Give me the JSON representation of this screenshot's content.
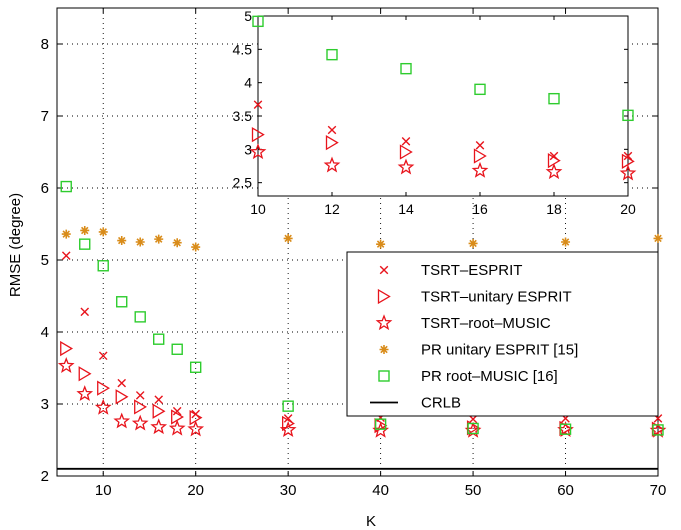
{
  "chart_data": {
    "type": "scatter",
    "xlabel": "K",
    "ylabel": "RMSE (degree)",
    "xlim": [
      5,
      70
    ],
    "ylim": [
      2,
      8.5
    ],
    "xticks": [
      10,
      20,
      30,
      40,
      50,
      60,
      70
    ],
    "yticks": [
      2,
      3,
      4,
      5,
      6,
      7,
      8
    ],
    "grid": "dotted",
    "legend_position": "right",
    "series": [
      {
        "name": "TSRT–ESPRIT",
        "marker": "x",
        "color": "#e8141c",
        "points": [
          [
            6,
            5.06
          ],
          [
            8,
            4.28
          ],
          [
            10,
            3.67
          ],
          [
            12,
            3.29
          ],
          [
            14,
            3.12
          ],
          [
            16,
            3.06
          ],
          [
            18,
            2.9
          ],
          [
            20,
            2.86
          ],
          [
            30,
            2.8
          ],
          [
            40,
            2.81
          ],
          [
            50,
            2.79
          ],
          [
            60,
            2.8
          ],
          [
            70,
            2.8
          ]
        ]
      },
      {
        "name": "TSRT–unitary ESPRIT",
        "marker": "triangle-right",
        "color": "#e8141c",
        "points": [
          [
            6,
            3.77
          ],
          [
            8,
            3.42
          ],
          [
            10,
            3.22
          ],
          [
            12,
            3.1
          ],
          [
            14,
            2.96
          ],
          [
            16,
            2.9
          ],
          [
            18,
            2.82
          ],
          [
            20,
            2.81
          ],
          [
            30,
            2.73
          ],
          [
            40,
            2.7
          ],
          [
            50,
            2.67
          ],
          [
            60,
            2.66
          ],
          [
            70,
            2.65
          ]
        ]
      },
      {
        "name": "TSRT–root–MUSIC",
        "marker": "star",
        "color": "#e8141c",
        "points": [
          [
            6,
            3.53
          ],
          [
            8,
            3.14
          ],
          [
            10,
            2.95
          ],
          [
            12,
            2.76
          ],
          [
            14,
            2.73
          ],
          [
            16,
            2.68
          ],
          [
            18,
            2.66
          ],
          [
            20,
            2.65
          ],
          [
            30,
            2.64
          ],
          [
            40,
            2.63
          ],
          [
            50,
            2.63
          ],
          [
            60,
            2.64
          ],
          [
            70,
            2.63
          ]
        ]
      },
      {
        "name": "PR unitary ESPRIT [15]",
        "marker": "asterisk",
        "color": "#d98c1a",
        "points": [
          [
            6,
            5.36
          ],
          [
            8,
            5.41
          ],
          [
            10,
            5.39
          ],
          [
            12,
            5.27
          ],
          [
            14,
            5.25
          ],
          [
            16,
            5.29
          ],
          [
            18,
            5.24
          ],
          [
            20,
            5.18
          ],
          [
            30,
            5.3
          ],
          [
            40,
            5.22
          ],
          [
            50,
            5.23
          ],
          [
            60,
            5.25
          ],
          [
            70,
            5.3
          ]
        ]
      },
      {
        "name": "PR root–MUSIC [16]",
        "marker": "square",
        "color": "#2ecc2e",
        "points": [
          [
            6,
            6.02
          ],
          [
            8,
            5.22
          ],
          [
            10,
            4.92
          ],
          [
            12,
            4.42
          ],
          [
            14,
            4.21
          ],
          [
            16,
            3.9
          ],
          [
            18,
            3.76
          ],
          [
            20,
            3.51
          ],
          [
            30,
            2.97
          ],
          [
            40,
            2.72
          ],
          [
            50,
            2.66
          ],
          [
            60,
            2.65
          ],
          [
            70,
            2.64
          ]
        ]
      },
      {
        "name": "CRLB",
        "marker": "line",
        "color": "#000000",
        "points": [
          [
            5,
            2.1
          ],
          [
            70,
            2.1
          ]
        ]
      }
    ],
    "inset": {
      "xlim": [
        10,
        20
      ],
      "ylim": [
        2.3,
        5
      ],
      "xticks": [
        10,
        12,
        14,
        16,
        18,
        20
      ],
      "yticks": [
        2.5,
        3,
        3.5,
        4,
        4.5,
        5
      ],
      "ytick_labels": [
        "2.5",
        "3",
        "3.5",
        "4",
        "4.5",
        "5"
      ],
      "series": [
        {
          "marker": "x",
          "color": "#e8141c",
          "points": [
            [
              10,
              3.67
            ],
            [
              12,
              3.29
            ],
            [
              14,
              3.12
            ],
            [
              16,
              3.06
            ],
            [
              18,
              2.9
            ],
            [
              20,
              2.9
            ]
          ]
        },
        {
          "marker": "triangle-right",
          "color": "#e8141c",
          "points": [
            [
              10,
              3.22
            ],
            [
              12,
              3.1
            ],
            [
              14,
              2.96
            ],
            [
              16,
              2.9
            ],
            [
              18,
              2.83
            ],
            [
              20,
              2.82
            ]
          ]
        },
        {
          "marker": "star",
          "color": "#e8141c",
          "points": [
            [
              10,
              2.96
            ],
            [
              12,
              2.76
            ],
            [
              14,
              2.73
            ],
            [
              16,
              2.68
            ],
            [
              18,
              2.66
            ],
            [
              20,
              2.64
            ]
          ]
        },
        {
          "marker": "square",
          "color": "#2ecc2e",
          "points": [
            [
              10,
              4.92
            ],
            [
              12,
              4.42
            ],
            [
              14,
              4.21
            ],
            [
              16,
              3.9
            ],
            [
              18,
              3.76
            ],
            [
              20,
              3.51
            ]
          ]
        }
      ]
    }
  }
}
